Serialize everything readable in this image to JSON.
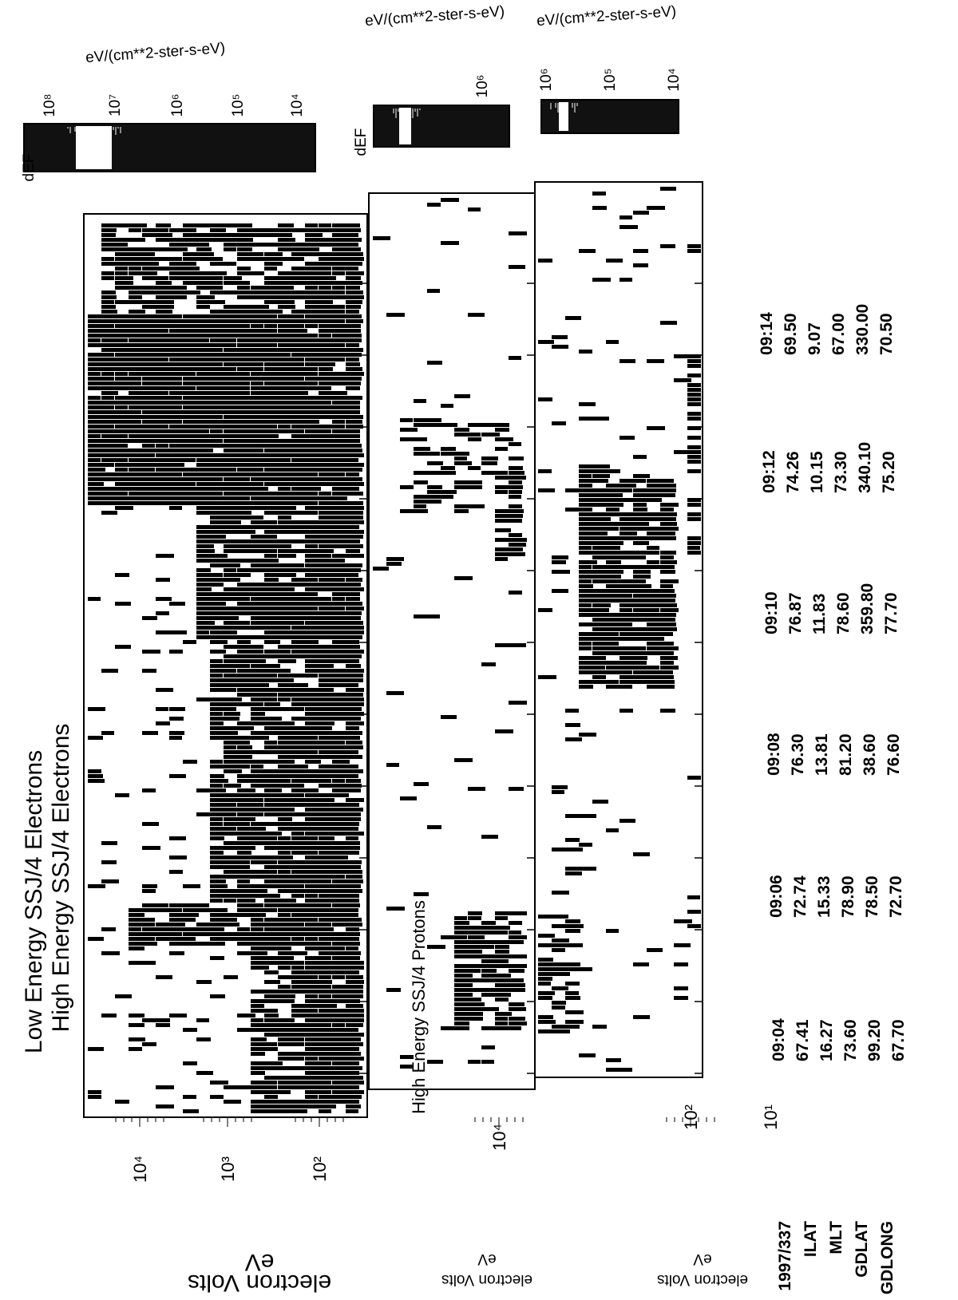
{
  "figure": {
    "panels": [
      {
        "labels": [
          "Low Energy SSJ/4 Electrons",
          "High Energy SSJ/4 Electrons"
        ],
        "axis_label": "electron Volts",
        "axis_unit": "eV",
        "ticks": [
          "10⁴",
          "10³",
          "10²"
        ],
        "colorbar": {
          "label": "dEF",
          "unit": "eV/(cm**2-ster-s-eV)",
          "ticks": [
            "10⁸",
            "10⁷",
            "10⁶",
            "10⁵",
            "10⁴"
          ]
        }
      },
      {
        "labels": [
          "High Energy SSJ/4 Protons"
        ],
        "axis_label": "electron Volts",
        "axis_unit": "eV",
        "ticks": [
          "10⁴"
        ],
        "colorbar": {
          "label": "dEF",
          "unit": "eV/(cm**2-ster-s-eV)",
          "ticks": [
            "10⁶"
          ]
        }
      },
      {
        "labels": [],
        "axis_label": "electron Volts",
        "axis_unit": "eV",
        "ticks": [
          "10²",
          "10¹"
        ],
        "colorbar": {
          "unit": "eV/(cm**2-ster-s-eV)",
          "ticks": [
            "10⁶",
            "10⁵",
            "10⁴"
          ]
        }
      }
    ],
    "ephemeris": {
      "row_labels": [
        "1997/337",
        "ILAT",
        "MLT",
        "GDLAT",
        "GDLONG"
      ],
      "columns": [
        {
          "time": "09:04",
          "values": [
            "67.41",
            "16.27",
            "73.60",
            "99.20",
            "67.70"
          ]
        },
        {
          "time": "09:06",
          "values": [
            "72.74",
            "15.33",
            "78.90",
            "78.50",
            "72.70"
          ]
        },
        {
          "time": "09:08",
          "values": [
            "76.30",
            "13.81",
            "81.20",
            "38.60",
            "76.60"
          ]
        },
        {
          "time": "09:10",
          "values": [
            "76.87",
            "11.83",
            "78.60",
            "359.80",
            "77.70"
          ]
        },
        {
          "time": "09:12",
          "values": [
            "74.26",
            "10.15",
            "73.30",
            "340.10",
            "75.20"
          ]
        },
        {
          "time": "09:14",
          "values": [
            "69.50",
            "9.07",
            "67.00",
            "330.00",
            "70.50"
          ]
        }
      ]
    }
  }
}
